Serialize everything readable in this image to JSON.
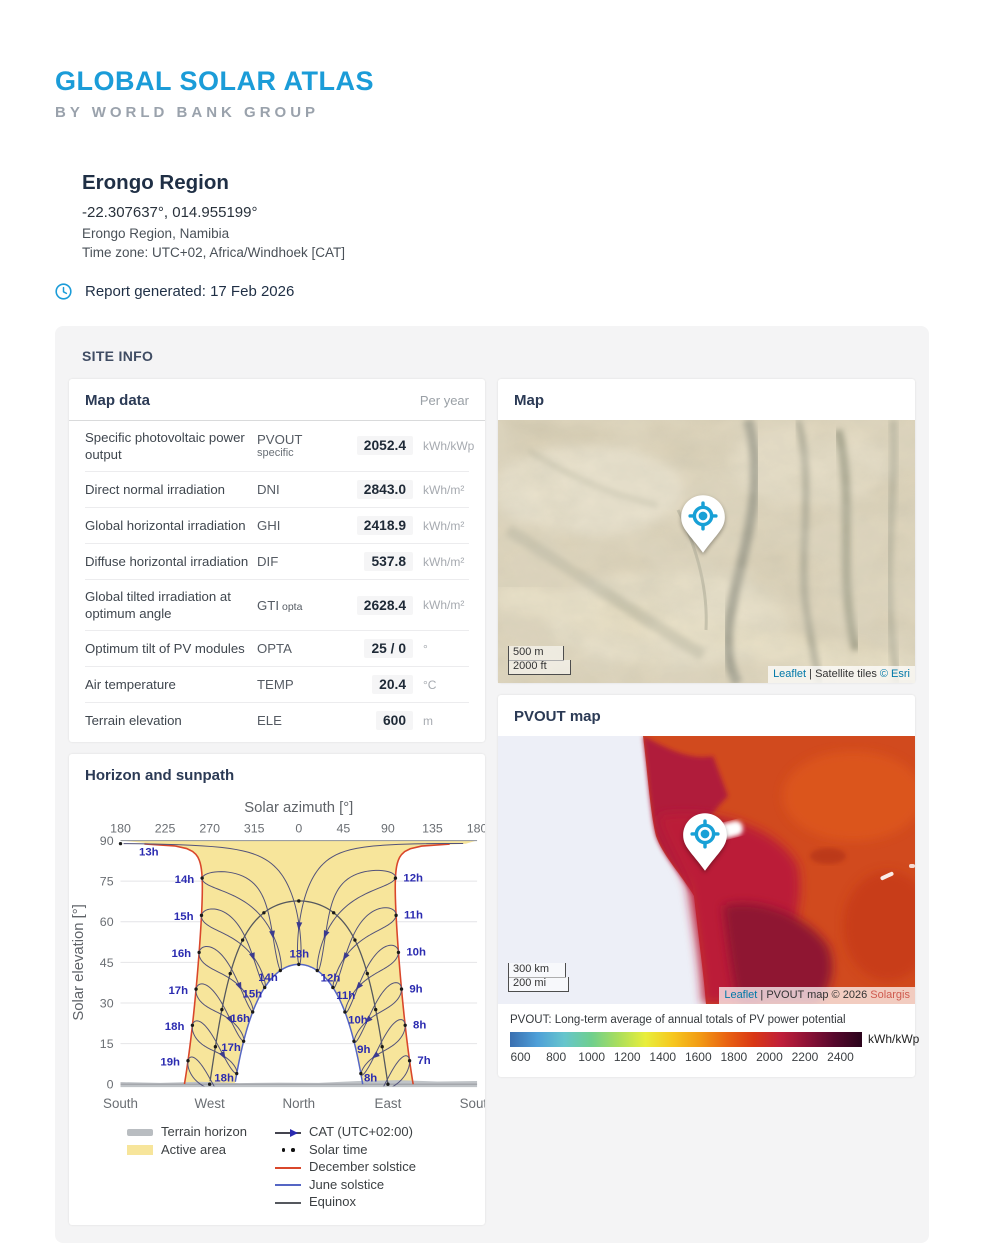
{
  "header": {
    "title": "GLOBAL SOLAR ATLAS",
    "subtitle": "BY WORLD BANK GROUP"
  },
  "site": {
    "name": "Erongo Region",
    "coordinates": "-22.307637°, 014.955199°",
    "location": "Erongo Region, Namibia",
    "timezone": "Time zone: UTC+02, Africa/Windhoek [CAT]",
    "generated": "Report generated: 17 Feb 2026",
    "clock_icon": "clock-icon"
  },
  "site_info": {
    "label": "SITE INFO"
  },
  "map_data": {
    "title": "Map data",
    "period": "Per year",
    "rows": [
      {
        "label": "Specific photovoltaic power output",
        "code": "PVOUT",
        "code_line2": "specific",
        "code_suffix": "",
        "value": "2052.4",
        "unit": "kWh/kWp"
      },
      {
        "label": "Direct normal irradiation",
        "code": "DNI",
        "code_line2": "",
        "code_suffix": "",
        "value": "2843.0",
        "unit": "kWh/m²"
      },
      {
        "label": "Global horizontal irradiation",
        "code": "GHI",
        "code_line2": "",
        "code_suffix": "",
        "value": "2418.9",
        "unit": "kWh/m²"
      },
      {
        "label": "Diffuse horizontal irradiation",
        "code": "DIF",
        "code_line2": "",
        "code_suffix": "",
        "value": "537.8",
        "unit": "kWh/m²"
      },
      {
        "label": "Global tilted irradiation at optimum angle",
        "code": "GTI",
        "code_line2": "",
        "code_suffix": "opta",
        "value": "2628.4",
        "unit": "kWh/m²"
      },
      {
        "label": "Optimum tilt of PV modules",
        "code": "OPTA",
        "code_line2": "",
        "code_suffix": "",
        "value": "25 / 0",
        "unit": "°"
      },
      {
        "label": "Air temperature",
        "code": "TEMP",
        "code_line2": "",
        "code_suffix": "",
        "value": "20.4",
        "unit": "°C"
      },
      {
        "label": "Terrain elevation",
        "code": "ELE",
        "code_line2": "",
        "code_suffix": "",
        "value": "600",
        "unit": "m"
      }
    ]
  },
  "map_card": {
    "title": "Map",
    "scale_m": "500 m",
    "scale_ft": "2000 ft",
    "attr_leaflet": "Leaflet",
    "attr_sep": " | ",
    "attr_text": "Satellite tiles ",
    "attr_link": "© Esri",
    "marker_icon": "location-target-pin"
  },
  "pvout_card": {
    "title": "PVOUT map",
    "scale_km": "300 km",
    "scale_mi": "200 mi",
    "attr_leaflet": "Leaflet",
    "attr_sep": " | ",
    "attr_text": "PVOUT map © 2026 ",
    "attr_link": "Solargis",
    "legend_title": "PVOUT: Long-term average of annual totals of PV power potential",
    "legend_unit": "kWh/kWp",
    "ticks": [
      600,
      800,
      1000,
      1200,
      1400,
      1600,
      1800,
      2000,
      2200,
      2400
    ],
    "gradient": [
      "#3a6fb0",
      "#4e9fd8",
      "#66c5cd",
      "#6fcf8e",
      "#aade5c",
      "#e8ee3c",
      "#f6c81f",
      "#f29b14",
      "#e96312",
      "#d93714",
      "#c01f3a",
      "#8c1236",
      "#55082c",
      "#2b041c"
    ]
  },
  "chart_data": {
    "type": "sunpath",
    "title": "Horizon and sunpath",
    "top_axis_label": "Solar azimuth [°]",
    "y_axis_label": "Solar elevation [°]",
    "x_ticks": [
      180,
      225,
      270,
      315,
      0,
      45,
      90,
      135,
      180
    ],
    "y_ticks": [
      0,
      15,
      30,
      45,
      60,
      75,
      90
    ],
    "compass_labels": [
      "South",
      "West",
      "North",
      "East",
      "South"
    ],
    "latitude": -22.307637,
    "longitude": 14.955199,
    "utc_offset": 2,
    "hour_suffix": "h",
    "clock_hours_afternoon": [
      13,
      14,
      15,
      16,
      17,
      18,
      19
    ],
    "clock_hours_morning": [
      12,
      11,
      10,
      9,
      8,
      7
    ],
    "inner_hours": [
      8,
      9,
      10,
      11,
      12,
      13,
      14,
      15,
      16,
      17,
      18
    ],
    "terrain_profile": [
      [
        -180,
        0.8
      ],
      [
        -140,
        0.5
      ],
      [
        -100,
        0.9
      ],
      [
        -60,
        0.4
      ],
      [
        -20,
        0.6
      ],
      [
        20,
        0.5
      ],
      [
        60,
        1.2
      ],
      [
        100,
        1.5
      ],
      [
        140,
        1.0
      ],
      [
        180,
        1.2
      ]
    ],
    "legend": [
      {
        "swatch": "terrain",
        "label": "Terrain horizon",
        "col": 1
      },
      {
        "swatch": "active",
        "label": "Active area",
        "col": 1
      },
      {
        "swatch": "cat",
        "label": "CAT (UTC+02:00)",
        "col": 2
      },
      {
        "swatch": "dots",
        "label": "Solar time",
        "col": 2
      },
      {
        "swatch": "line-red",
        "label": "December solstice",
        "col": 2
      },
      {
        "swatch": "line-blue",
        "label": "June solstice",
        "col": 2
      },
      {
        "swatch": "line-dark",
        "label": "Equinox",
        "col": 2
      }
    ],
    "colors": {
      "active": "#f7e59b",
      "terrain": "#bfc3c7",
      "december": "#d9472b",
      "june": "#5566c4",
      "equinox": "#55585e",
      "analemma": "#52527a",
      "arrow": "#3b3b8f",
      "hour_label": "#2b2bb0",
      "inner13": "#666666",
      "dots": "#1a1a1a"
    }
  },
  "brand_colors": {
    "accent_blue": "#1b9cd8",
    "leaflet_link": "#0078a8"
  }
}
